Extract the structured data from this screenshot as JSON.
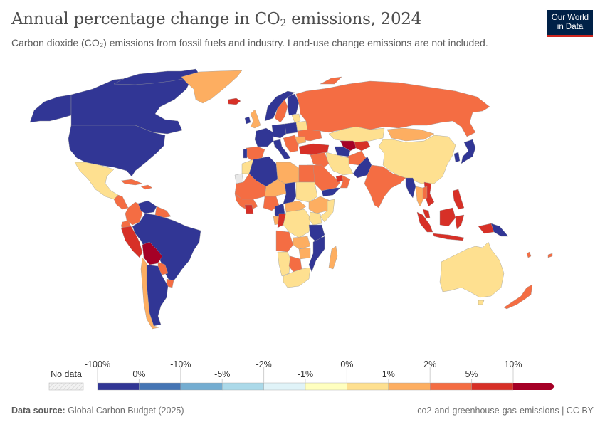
{
  "header": {
    "title_main": "Annual percentage change in CO",
    "title_sub": "2",
    "title_tail": " emissions, 2024",
    "subtitle": "Carbon dioxide (CO₂) emissions from fossil fuels and industry. Land-use change emissions are not included.",
    "logo_line1": "Our World",
    "logo_line2": "in Data"
  },
  "colors": {
    "no_data": "#e8e8e8",
    "bins": [
      "#313695",
      "#4575b4",
      "#74add1",
      "#abd9e9",
      "#e0f3f8",
      "#ffffbf",
      "#fee090",
      "#fdae61",
      "#f46d43",
      "#d73027",
      "#a50026"
    ],
    "brand_bg": "#002147",
    "brand_accent": "#ce261e"
  },
  "chart_data": {
    "type": "choropleth",
    "title": "Annual percentage change in CO₂ emissions, 2024",
    "legend": {
      "no_data_label": "No data",
      "upper_ticks": [
        "-100%",
        "-10%",
        "-2%",
        "0%",
        "2%",
        "10%"
      ],
      "lower_ticks": [
        "0%",
        "-5%",
        "-1%",
        "1%",
        "5%"
      ],
      "bins": [
        {
          "range": "-100% to 0%",
          "color_index": 0
        },
        {
          "range": "0% to -10%",
          "color_index": 1
        },
        {
          "range": "-10% to -5%",
          "color_index": 2
        },
        {
          "range": "-5% to -2%",
          "color_index": 3
        },
        {
          "range": "-2% to -1%",
          "color_index": 4
        },
        {
          "range": "-1% to 0%",
          "color_index": 5
        },
        {
          "range": "0% to 1%",
          "color_index": 6
        },
        {
          "range": "1% to 2%",
          "color_index": 7
        },
        {
          "range": "2% to 5%",
          "color_index": 8
        },
        {
          "range": "5% to 10%",
          "color_index": 9
        },
        {
          "range": ">10%",
          "color_index": 10
        }
      ]
    },
    "regions": {
      "canada": 0,
      "usa": 0,
      "alaska": 0,
      "greenland": 7,
      "iceland": 9,
      "mexico": 6,
      "central_america": 8,
      "caribbean": 8,
      "cuba": 8,
      "colombia": 8,
      "venezuela": 0,
      "guyanas": 8,
      "ecuador": 8,
      "peru": 9,
      "brazil": 0,
      "bolivia": 10,
      "paraguay": 8,
      "chile": 7,
      "argentina": 0,
      "uruguay": 8,
      "uk": 7,
      "ireland": 0,
      "norway": 0,
      "sweden": 8,
      "finland": 0,
      "france": 0,
      "spain": 8,
      "portugal": 0,
      "germany": 0,
      "poland": 0,
      "italy": 0,
      "balkans": 8,
      "ukraine": 8,
      "baltics": 6,
      "belarus": 6,
      "romania": 7,
      "turkey": 9,
      "russia": 8,
      "kazakhstan": 6,
      "mongolia": 7,
      "china": 6,
      "japan": 0,
      "korea": 0,
      "uzbekistan": 10,
      "turkmenistan": 0,
      "kyrgyz_tajik": 9,
      "afghanistan": 8,
      "iran": 6,
      "pakistan": 0,
      "india": 8,
      "myanmar": 0,
      "thailand": 7,
      "vietnam": 9,
      "indochina": 8,
      "saudi": 8,
      "yemen": 0,
      "oman": 8,
      "iraq_syria": 8,
      "uae": 9,
      "philippines": 9,
      "indonesia": 9,
      "malaysia": 9,
      "png": 0,
      "pacific_islands": 8,
      "australia": 6,
      "new_zealand": 8,
      "morocco": 6,
      "algeria": 0,
      "libya": 7,
      "egypt": 8,
      "western_sahara": -1,
      "mauritania_mali": 8,
      "niger": 7,
      "chad": 0,
      "sudan": 6,
      "ethiopia": 7,
      "somalia": 6,
      "west_africa": 8,
      "cote_divoire": 9,
      "nigeria": 8,
      "cameroon": 0,
      "car": 7,
      "congo": 9,
      "gabon": 7,
      "drc": 6,
      "kenya": 6,
      "tanzania": 0,
      "angola": 8,
      "zambia": 7,
      "mozambique": 0,
      "namibia": 6,
      "botswana": 8,
      "south_africa": 6,
      "zimbabwe": 7,
      "madagascar": 7
    }
  },
  "footer": {
    "source_label": "Data source:",
    "source_value": " Global Carbon Budget (2025)",
    "slug": "co2-and-greenhouse-gas-emissions | CC BY"
  }
}
